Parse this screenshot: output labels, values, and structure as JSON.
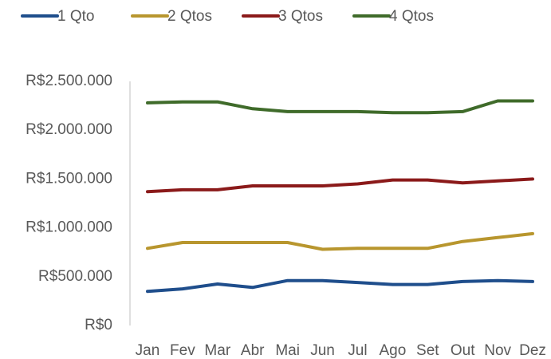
{
  "chart_data": {
    "type": "line",
    "categories": [
      "Jan",
      "Fev",
      "Mar",
      "Abr",
      "Mai",
      "Jun",
      "Jul",
      "Ago",
      "Set",
      "Out",
      "Nov",
      "Dez"
    ],
    "series": [
      {
        "name": "1 Qto",
        "color": "#1f4e8c",
        "values": [
          350000,
          375000,
          425000,
          390000,
          460000,
          460000,
          440000,
          420000,
          420000,
          450000,
          460000,
          450000
        ]
      },
      {
        "name": "2 Qtos",
        "color": "#b8962e",
        "values": [
          790000,
          850000,
          850000,
          850000,
          850000,
          780000,
          790000,
          790000,
          790000,
          860000,
          900000,
          940000
        ]
      },
      {
        "name": "3 Qtos",
        "color": "#8b1a1a",
        "values": [
          1370000,
          1390000,
          1390000,
          1430000,
          1430000,
          1430000,
          1450000,
          1490000,
          1490000,
          1460000,
          1480000,
          1500000
        ]
      },
      {
        "name": "4 Qtos",
        "color": "#3f6b2a",
        "values": [
          2280000,
          2290000,
          2290000,
          2220000,
          2190000,
          2190000,
          2190000,
          2180000,
          2180000,
          2190000,
          2300000,
          2300000
        ]
      }
    ],
    "ylim": [
      0,
      2500000
    ],
    "yticks": [
      {
        "value": 0,
        "label": "R$0"
      },
      {
        "value": 500000,
        "label": "R$500.000"
      },
      {
        "value": 1000000,
        "label": "R$1.000.000"
      },
      {
        "value": 1500000,
        "label": "R$1.500.000"
      },
      {
        "value": 2000000,
        "label": "R$2.000.000"
      },
      {
        "value": 2500000,
        "label": "R$2.500.000"
      }
    ],
    "grid": false,
    "legend": "top"
  }
}
